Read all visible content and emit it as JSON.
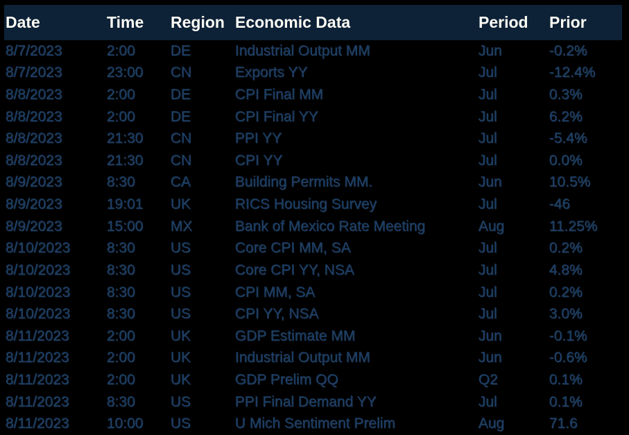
{
  "colors": {
    "page_background": "#000000",
    "header_background": "#0d2137",
    "header_text": "#fcfcf4",
    "body_text": "#1d3c63"
  },
  "table": {
    "columns": [
      {
        "key": "date",
        "label": "Date"
      },
      {
        "key": "time",
        "label": "Time"
      },
      {
        "key": "region",
        "label": "Region"
      },
      {
        "key": "event",
        "label": "Economic Data"
      },
      {
        "key": "period",
        "label": "Period"
      },
      {
        "key": "prior",
        "label": "Prior"
      }
    ],
    "rows": [
      {
        "date": "8/7/2023",
        "time": "2:00",
        "region": "DE",
        "event": "Industrial Output MM",
        "period": "Jun",
        "prior": "-0.2%"
      },
      {
        "date": "8/7/2023",
        "time": "23:00",
        "region": "CN",
        "event": "Exports YY",
        "period": "Jul",
        "prior": "-12.4%"
      },
      {
        "date": "8/8/2023",
        "time": "2:00",
        "region": "DE",
        "event": "CPI Final MM",
        "period": "Jul",
        "prior": "0.3%"
      },
      {
        "date": "8/8/2023",
        "time": "2:00",
        "region": "DE",
        "event": "CPI Final YY",
        "period": "Jul",
        "prior": "6.2%"
      },
      {
        "date": "8/8/2023",
        "time": "21:30",
        "region": "CN",
        "event": "PPI YY",
        "period": "Jul",
        "prior": "-5.4%"
      },
      {
        "date": "8/8/2023",
        "time": "21:30",
        "region": "CN",
        "event": "CPI YY",
        "period": "Jul",
        "prior": "0.0%"
      },
      {
        "date": "8/9/2023",
        "time": "8:30",
        "region": "CA",
        "event": "Building Permits MM.",
        "period": "Jun",
        "prior": "10.5%"
      },
      {
        "date": "8/9/2023",
        "time": "19:01",
        "region": "UK",
        "event": "RICS Housing Survey",
        "period": "Jul",
        "prior": "-46"
      },
      {
        "date": "8/9/2023",
        "time": "15:00",
        "region": "MX",
        "event": "Bank of Mexico Rate Meeting",
        "period": "Aug",
        "prior": "11.25%"
      },
      {
        "date": "8/10/2023",
        "time": "8:30",
        "region": "US",
        "event": "Core CPI MM, SA",
        "period": "Jul",
        "prior": "0.2%"
      },
      {
        "date": "8/10/2023",
        "time": "8:30",
        "region": "US",
        "event": "Core CPI YY, NSA",
        "period": "Jul",
        "prior": "4.8%"
      },
      {
        "date": "8/10/2023",
        "time": "8:30",
        "region": "US",
        "event": "CPI MM, SA",
        "period": "Jul",
        "prior": "0.2%"
      },
      {
        "date": "8/10/2023",
        "time": "8:30",
        "region": "US",
        "event": "CPI YY, NSA",
        "period": "Jul",
        "prior": "3.0%"
      },
      {
        "date": "8/11/2023",
        "time": "2:00",
        "region": "UK",
        "event": "GDP Estimate MM",
        "period": "Jun",
        "prior": "-0.1%"
      },
      {
        "date": "8/11/2023",
        "time": "2:00",
        "region": "UK",
        "event": "Industrial Output MM",
        "period": "Jun",
        "prior": "-0.6%"
      },
      {
        "date": "8/11/2023",
        "time": "2:00",
        "region": "UK",
        "event": "GDP Prelim QQ",
        "period": "Q2",
        "prior": "0.1%"
      },
      {
        "date": "8/11/2023",
        "time": "8:30",
        "region": "US",
        "event": "PPI Final Demand YY",
        "period": "Jul",
        "prior": "0.1%"
      },
      {
        "date": "8/11/2023",
        "time": "10:00",
        "region": "US",
        "event": "U Mich Sentiment Prelim",
        "period": "Aug",
        "prior": "71.6"
      }
    ]
  }
}
